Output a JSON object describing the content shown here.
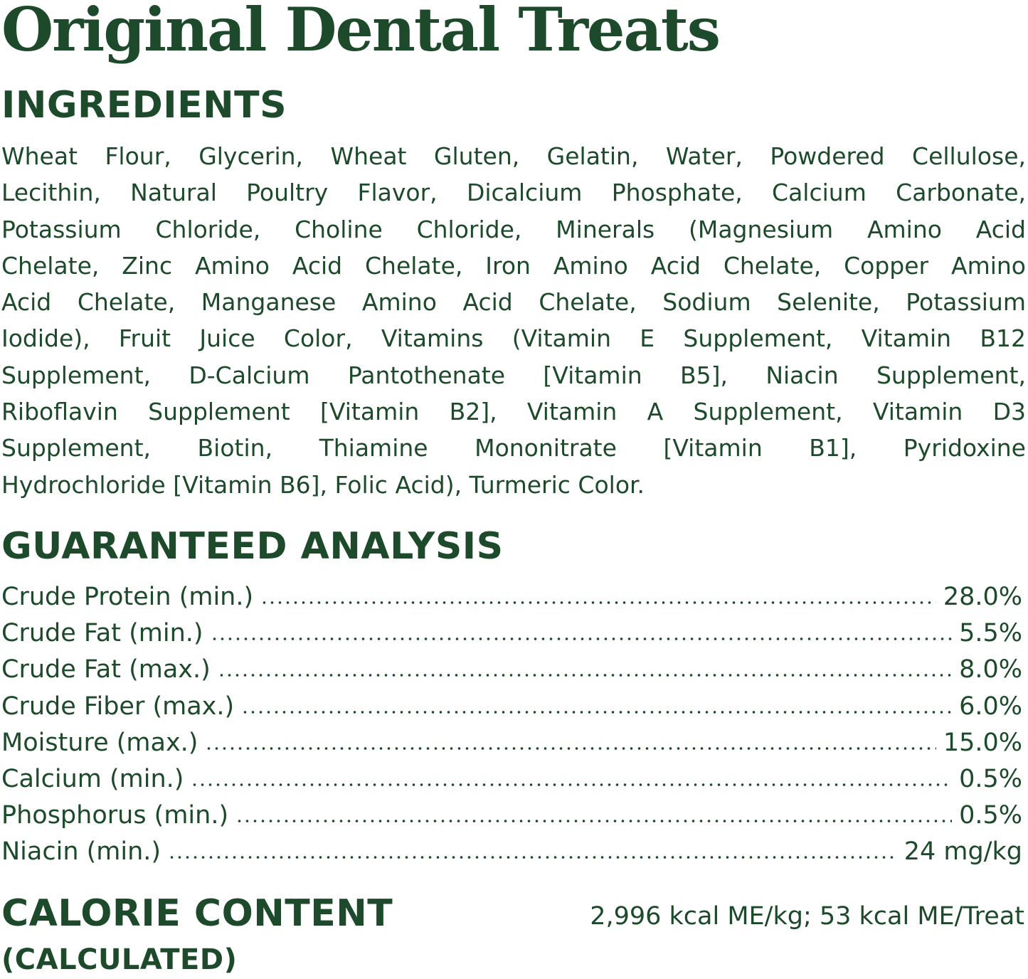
{
  "title": "Original Dental Treats",
  "ingredients": {
    "heading": "INGREDIENTS",
    "lines": [
      "Wheat Flour, Glycerin, Wheat Gluten, Gelatin, Water, Powdered Cellulose,",
      "Lecithin, Natural Poultry Flavor, Dicalcium Phosphate, Calcium Carbonate,",
      "Potassium Chloride, Choline Chloride, Minerals (Magnesium Amino Acid",
      "Chelate, Zinc Amino Acid Chelate, Iron Amino Acid Chelate, Copper Amino",
      "Acid Chelate, Manganese Amino Acid Chelate, Sodium Selenite, Potassium",
      "Iodide), Fruit Juice Color, Vitamins (Vitamin E Supplement, Vitamin B12",
      "Supplement, D-Calcium Pantothenate [Vitamin B5], Niacin Supplement,",
      "Riboflavin Supplement [Vitamin B2], Vitamin A Supplement, Vitamin D3",
      "Supplement, Biotin, Thiamine Mononitrate [Vitamin B1], Pyridoxine",
      "Hydrochloride [Vitamin B6], Folic Acid), Turmeric Color."
    ]
  },
  "analysis": {
    "heading": "GUARANTEED ANALYSIS",
    "rows": [
      {
        "label": "Crude Protein (min.)",
        "value": "28.0%"
      },
      {
        "label": "Crude Fat (min.)",
        "value": "5.5%"
      },
      {
        "label": "Crude Fat (max.)",
        "value": "8.0%"
      },
      {
        "label": "Crude Fiber (max.)",
        "value": "6.0%"
      },
      {
        "label": "Moisture (max.)",
        "value": "15.0%"
      },
      {
        "label": "Calcium (min.)",
        "value": "0.5%"
      },
      {
        "label": "Phosphorus (min.)",
        "value": "0.5%"
      },
      {
        "label": "Niacin (min.)",
        "value": "24 mg/kg"
      }
    ]
  },
  "calorie": {
    "heading": "CALORIE CONTENT",
    "subheading": "(CALCULATED)",
    "value": "2,996 kcal ME/kg; 53 kcal ME/Treat"
  }
}
